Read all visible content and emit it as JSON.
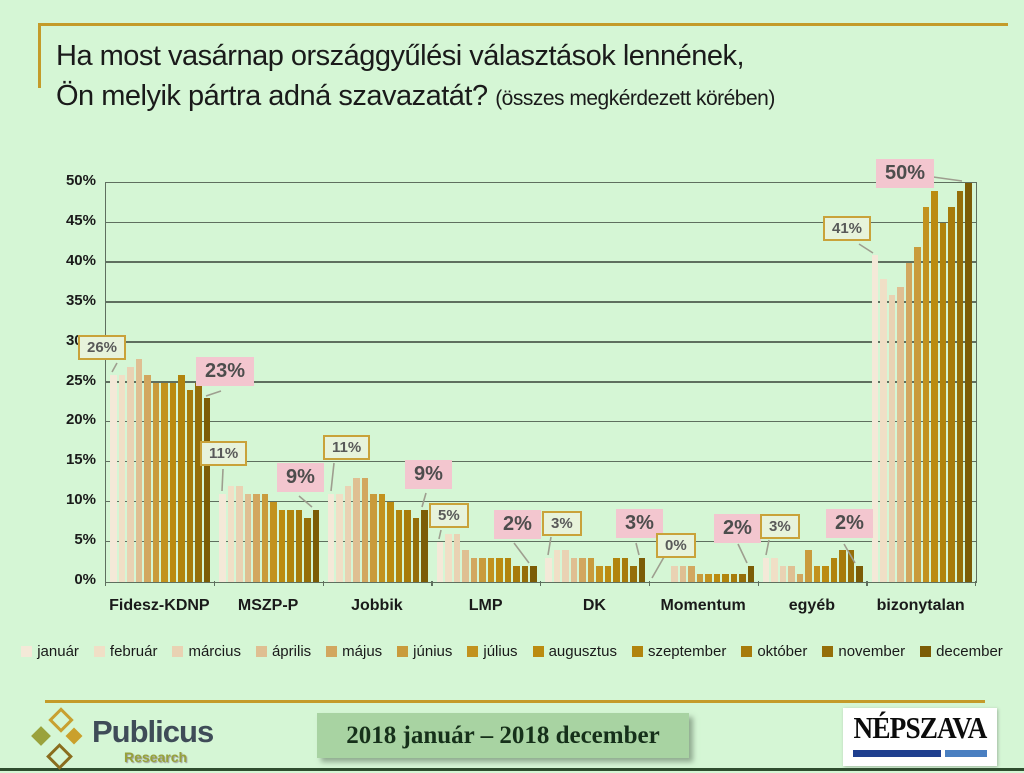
{
  "title": {
    "line1": "Ha most vasárnap országgyűlési választások lennének,",
    "line2": "Ön melyik pártra adná szavazatát?",
    "suffix": "(összes megkérdezett körében)"
  },
  "colors": {
    "background": "#d5f6d5",
    "accent_gold": "#c49b2a",
    "gridline": "#5f6f5f",
    "callout_gold_border": "#c9a23a",
    "callout_gold_fill": "#e7f3db",
    "callout_pink_fill": "#f3c6cf",
    "period_box_fill": "#a8d3a2"
  },
  "chart_data": {
    "type": "bar",
    "title": "Ha most vasárnap országgyűlési választások lennének, Ön melyik pártra adná szavazatát? (összes megkérdezett körében)",
    "categories": [
      "Fidesz-KDNP",
      "MSZP-P",
      "Jobbik",
      "LMP",
      "DK",
      "Momentum",
      "egyéb",
      "bizonytalan"
    ],
    "months": [
      "január",
      "február",
      "március",
      "április",
      "május",
      "június",
      "július",
      "augusztus",
      "szeptember",
      "október",
      "november",
      "december"
    ],
    "month_colors": [
      "#f4e9d8",
      "#f0dfc6",
      "#e9d2b3",
      "#dfbf92",
      "#d2a75f",
      "#c99b3c",
      "#c2921e",
      "#bb8b10",
      "#b1840d",
      "#a77b0b",
      "#956e09",
      "#7c5c06"
    ],
    "series": [
      {
        "name": "Fidesz-KDNP",
        "values": [
          26,
          26,
          27,
          28,
          26,
          25,
          25,
          25,
          26,
          24,
          25,
          23
        ]
      },
      {
        "name": "MSZP-P",
        "values": [
          11,
          12,
          12,
          11,
          11,
          11,
          10,
          9,
          9,
          9,
          8,
          9
        ]
      },
      {
        "name": "Jobbik",
        "values": [
          11,
          11,
          12,
          13,
          13,
          11,
          11,
          10,
          9,
          9,
          8,
          9
        ]
      },
      {
        "name": "LMP",
        "values": [
          5,
          6,
          6,
          4,
          3,
          3,
          3,
          3,
          3,
          2,
          2,
          2
        ]
      },
      {
        "name": "DK",
        "values": [
          3,
          4,
          4,
          3,
          3,
          3,
          2,
          2,
          3,
          3,
          2,
          3
        ]
      },
      {
        "name": "Momentum",
        "values": [
          0,
          0,
          2,
          2,
          2,
          1,
          1,
          1,
          1,
          1,
          1,
          2
        ]
      },
      {
        "name": "egyéb",
        "values": [
          3,
          3,
          2,
          2,
          1,
          4,
          2,
          2,
          3,
          4,
          4,
          2
        ]
      },
      {
        "name": "bizonytalan",
        "values": [
          41,
          38,
          36,
          37,
          40,
          42,
          47,
          49,
          45,
          47,
          49,
          50
        ]
      }
    ],
    "ylim": [
      0,
      50
    ],
    "ytick_step": 5,
    "ytick_labels": [
      "0%",
      "5%",
      "10%",
      "15%",
      "20%",
      "25%",
      "30%",
      "35%",
      "40%",
      "45%",
      "50%"
    ],
    "grid": true,
    "legend_position": "bottom",
    "annotations": [
      {
        "category": "Fidesz-KDNP",
        "month": "január",
        "text": "26%",
        "style": "gold"
      },
      {
        "category": "Fidesz-KDNP",
        "month": "december",
        "text": "23%",
        "style": "pink"
      },
      {
        "category": "MSZP-P",
        "month": "január",
        "text": "11%",
        "style": "gold"
      },
      {
        "category": "MSZP-P",
        "month": "december",
        "text": "9%",
        "style": "pink"
      },
      {
        "category": "Jobbik",
        "month": "január",
        "text": "11%",
        "style": "gold"
      },
      {
        "category": "Jobbik",
        "month": "december",
        "text": "9%",
        "style": "pink"
      },
      {
        "category": "LMP",
        "month": "január",
        "text": "5%",
        "style": "gold"
      },
      {
        "category": "LMP",
        "month": "december",
        "text": "2%",
        "style": "pink"
      },
      {
        "category": "DK",
        "month": "január",
        "text": "3%",
        "style": "gold"
      },
      {
        "category": "DK",
        "month": "december",
        "text": "3%",
        "style": "pink"
      },
      {
        "category": "Momentum",
        "month": "január",
        "text": "0%",
        "style": "gold"
      },
      {
        "category": "Momentum",
        "month": "december",
        "text": "2%",
        "style": "pink"
      },
      {
        "category": "egyéb",
        "month": "január",
        "text": "3%",
        "style": "gold"
      },
      {
        "category": "egyéb",
        "month": "december",
        "text": "2%",
        "style": "pink"
      },
      {
        "category": "bizonytalan",
        "month": "január",
        "text": "41%",
        "style": "gold"
      },
      {
        "category": "bizonytalan",
        "month": "december",
        "text": "50%",
        "style": "pink"
      }
    ]
  },
  "footer": {
    "publicus": {
      "name": "Publicus",
      "sub": "Research"
    },
    "period": "2018 január – 2018 december",
    "nepszava": {
      "name": "NÉPSZAVA"
    }
  }
}
